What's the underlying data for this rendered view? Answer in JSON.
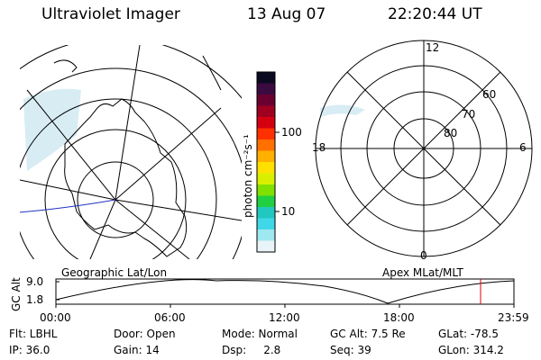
{
  "header": {
    "title": "Ultraviolet Imager",
    "date": "13 Aug 07",
    "time": "22:20:44 UT"
  },
  "colorbar": {
    "unit_label": "photon cm⁻²s⁻¹",
    "ticks": [
      "100",
      "10"
    ],
    "colors": [
      "#0a0a20",
      "#3a0a40",
      "#6a0030",
      "#a00020",
      "#d40010",
      "#ff3000",
      "#ff7000",
      "#ffb000",
      "#ffe000",
      "#d8f000",
      "#80e000",
      "#20d040",
      "#20c8c0",
      "#40d8e8",
      "#a0e8f0",
      "#e8f4f8"
    ]
  },
  "right_map": {
    "mlt_labels": [
      "12",
      "18",
      "6",
      "0"
    ],
    "lat_labels": [
      "60",
      "70",
      "80"
    ]
  },
  "altitude_plot": {
    "ylabel": "GC Alt",
    "yticks": [
      "9.0",
      "1.8"
    ],
    "left_title": "Geographic Lat/Lon",
    "right_title": "Apex MLat/MLT",
    "xticks": [
      "00:00",
      "06:00",
      "12:00",
      "18:00",
      "23:59"
    ],
    "marker_color": "#e00000"
  },
  "info": {
    "row1": [
      "Flt: LBHL",
      "Door: Open",
      "Mode: Normal",
      "GC Alt: 7.5 Re",
      "GLat: -78.5"
    ],
    "row2": [
      "IP: 36.0",
      "Gain: 14",
      "Dsp:     2.8",
      "Seq: 39",
      "GLon: 314.2"
    ]
  }
}
